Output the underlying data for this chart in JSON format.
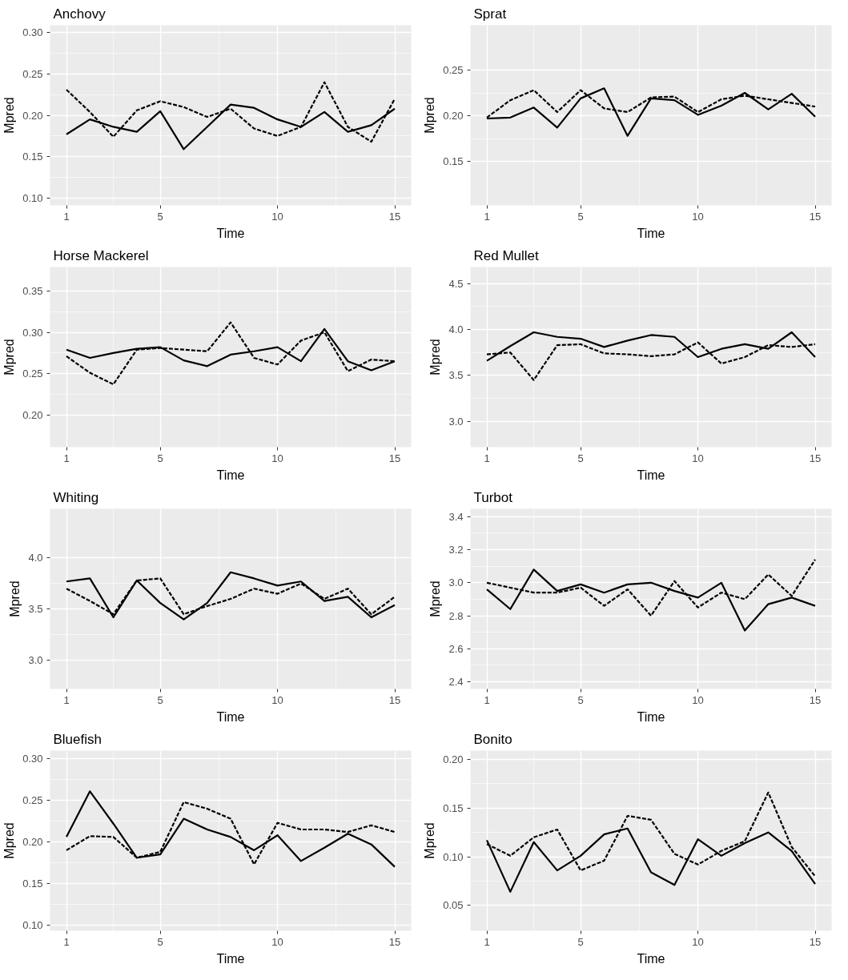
{
  "chart_data": [
    {
      "type": "line",
      "title": "Anchovy",
      "xlabel": "Time",
      "ylabel": "Mpred",
      "x": [
        1,
        2,
        3,
        4,
        5,
        6,
        7,
        8,
        9,
        10,
        11,
        12,
        13,
        14,
        15
      ],
      "xlim": [
        0.3,
        15.7
      ],
      "xticks": [
        1,
        5,
        10,
        15
      ],
      "ylim": [
        0.091,
        0.309
      ],
      "yticks": [
        {
          "value": 0.1,
          "label": "0.10"
        },
        {
          "value": 0.15,
          "label": "0.15"
        },
        {
          "value": 0.2,
          "label": "0.20"
        },
        {
          "value": 0.25,
          "label": "0.25"
        },
        {
          "value": 0.3,
          "label": "0.30"
        }
      ],
      "grid": true,
      "series": [
        {
          "color": "#000000",
          "line_style": "solid",
          "values": [
            0.177,
            0.195,
            0.186,
            0.18,
            0.205,
            0.159,
            0.186,
            0.213,
            0.209,
            0.195,
            0.186,
            0.204,
            0.18,
            0.188,
            0.208
          ]
        },
        {
          "color": "#000000",
          "line_style": "dashed",
          "values": [
            0.231,
            0.204,
            0.174,
            0.206,
            0.217,
            0.21,
            0.198,
            0.208,
            0.184,
            0.175,
            0.186,
            0.24,
            0.186,
            0.168,
            0.22
          ]
        }
      ]
    },
    {
      "type": "line",
      "title": "Sprat",
      "xlabel": "Time",
      "ylabel": "Mpred",
      "x": [
        1,
        2,
        3,
        4,
        5,
        6,
        7,
        8,
        9,
        10,
        11,
        12,
        13,
        14,
        15
      ],
      "xlim": [
        0.3,
        15.7
      ],
      "xticks": [
        1,
        5,
        10,
        15
      ],
      "ylim": [
        0.102,
        0.299
      ],
      "yticks": [
        {
          "value": 0.15,
          "label": "0.15"
        },
        {
          "value": 0.2,
          "label": "0.20"
        },
        {
          "value": 0.25,
          "label": "0.25"
        }
      ],
      "grid": true,
      "series": [
        {
          "color": "#000000",
          "line_style": "solid",
          "values": [
            0.197,
            0.198,
            0.209,
            0.187,
            0.219,
            0.23,
            0.178,
            0.219,
            0.217,
            0.201,
            0.211,
            0.225,
            0.207,
            0.224,
            0.199
          ]
        },
        {
          "color": "#000000",
          "line_style": "dashed",
          "values": [
            0.198,
            0.217,
            0.228,
            0.204,
            0.228,
            0.208,
            0.204,
            0.22,
            0.221,
            0.204,
            0.218,
            0.222,
            0.218,
            0.214,
            0.21
          ]
        }
      ]
    },
    {
      "type": "line",
      "title": "Horse Mackerel",
      "xlabel": "Time",
      "ylabel": "Mpred",
      "x": [
        1,
        2,
        3,
        4,
        5,
        6,
        7,
        8,
        9,
        10,
        11,
        12,
        13,
        14,
        15
      ],
      "xlim": [
        0.3,
        15.7
      ],
      "xticks": [
        1,
        5,
        10,
        15
      ],
      "ylim": [
        0.161,
        0.379
      ],
      "yticks": [
        {
          "value": 0.2,
          "label": "0.20"
        },
        {
          "value": 0.25,
          "label": "0.25"
        },
        {
          "value": 0.3,
          "label": "0.30"
        },
        {
          "value": 0.35,
          "label": "0.35"
        }
      ],
      "grid": true,
      "series": [
        {
          "color": "#000000",
          "line_style": "solid",
          "values": [
            0.279,
            0.269,
            0.275,
            0.28,
            0.282,
            0.266,
            0.259,
            0.273,
            0.277,
            0.282,
            0.265,
            0.304,
            0.265,
            0.254,
            0.265
          ]
        },
        {
          "color": "#000000",
          "line_style": "dashed",
          "values": [
            0.271,
            0.251,
            0.237,
            0.279,
            0.281,
            0.279,
            0.277,
            0.312,
            0.269,
            0.261,
            0.29,
            0.3,
            0.253,
            0.267,
            0.265
          ]
        }
      ]
    },
    {
      "type": "line",
      "title": "Red Mullet",
      "xlabel": "Time",
      "ylabel": "Mpred",
      "x": [
        1,
        2,
        3,
        4,
        5,
        6,
        7,
        8,
        9,
        10,
        11,
        12,
        13,
        14,
        15
      ],
      "xlim": [
        0.3,
        15.7
      ],
      "xticks": [
        1,
        5,
        10,
        15
      ],
      "ylim": [
        2.72,
        4.68
      ],
      "yticks": [
        {
          "value": 3.0,
          "label": "3.0"
        },
        {
          "value": 3.5,
          "label": "3.5"
        },
        {
          "value": 4.0,
          "label": "4.0"
        },
        {
          "value": 4.5,
          "label": "4.5"
        }
      ],
      "grid": true,
      "series": [
        {
          "color": "#000000",
          "line_style": "solid",
          "values": [
            3.66,
            3.82,
            3.97,
            3.92,
            3.9,
            3.81,
            3.88,
            3.94,
            3.92,
            3.7,
            3.79,
            3.84,
            3.79,
            3.97,
            3.7
          ]
        },
        {
          "color": "#000000",
          "line_style": "dashed",
          "values": [
            3.73,
            3.75,
            3.45,
            3.83,
            3.84,
            3.74,
            3.73,
            3.71,
            3.73,
            3.86,
            3.63,
            3.7,
            3.83,
            3.81,
            3.84
          ]
        }
      ]
    },
    {
      "type": "line",
      "title": "Whiting",
      "xlabel": "Time",
      "ylabel": "Mpred",
      "x": [
        1,
        2,
        3,
        4,
        5,
        6,
        7,
        8,
        9,
        10,
        11,
        12,
        13,
        14,
        15
      ],
      "xlim": [
        0.3,
        15.7
      ],
      "xticks": [
        1,
        5,
        10,
        15
      ],
      "ylim": [
        2.72,
        4.48
      ],
      "yticks": [
        {
          "value": 3.0,
          "label": "3.0"
        },
        {
          "value": 3.5,
          "label": "3.5"
        },
        {
          "value": 4.0,
          "label": "4.0"
        }
      ],
      "grid": true,
      "series": [
        {
          "color": "#000000",
          "line_style": "solid",
          "values": [
            3.77,
            3.8,
            3.42,
            3.78,
            3.56,
            3.4,
            3.56,
            3.86,
            3.8,
            3.73,
            3.77,
            3.58,
            3.62,
            3.42,
            3.54
          ]
        },
        {
          "color": "#000000",
          "line_style": "dashed",
          "values": [
            3.7,
            3.58,
            3.45,
            3.78,
            3.8,
            3.45,
            3.53,
            3.6,
            3.7,
            3.65,
            3.75,
            3.6,
            3.7,
            3.45,
            3.62
          ]
        }
      ]
    },
    {
      "type": "line",
      "title": "Turbot",
      "xlabel": "Time",
      "ylabel": "Mpred",
      "x": [
        1,
        2,
        3,
        4,
        5,
        6,
        7,
        8,
        9,
        10,
        11,
        12,
        13,
        14,
        15
      ],
      "xlim": [
        0.3,
        15.7
      ],
      "xticks": [
        1,
        5,
        10,
        15
      ],
      "ylim": [
        2.356,
        3.448
      ],
      "yticks": [
        {
          "value": 2.4,
          "label": "2.4"
        },
        {
          "value": 2.6,
          "label": "2.6"
        },
        {
          "value": 2.8,
          "label": "2.8"
        },
        {
          "value": 3.0,
          "label": "3.0"
        },
        {
          "value": 3.2,
          "label": "3.2"
        },
        {
          "value": 3.4,
          "label": "3.4"
        }
      ],
      "grid": true,
      "series": [
        {
          "color": "#000000",
          "line_style": "solid",
          "values": [
            2.96,
            2.84,
            3.08,
            2.95,
            2.99,
            2.94,
            2.99,
            3.0,
            2.95,
            2.91,
            3.0,
            2.71,
            2.87,
            2.91,
            2.86
          ]
        },
        {
          "color": "#000000",
          "line_style": "dashed",
          "values": [
            3.0,
            2.97,
            2.94,
            2.94,
            2.97,
            2.86,
            2.96,
            2.8,
            3.01,
            2.85,
            2.94,
            2.9,
            3.05,
            2.92,
            3.14
          ]
        }
      ]
    },
    {
      "type": "line",
      "title": "Bluefish",
      "xlabel": "Time",
      "ylabel": "Mpred",
      "x": [
        1,
        2,
        3,
        4,
        5,
        6,
        7,
        8,
        9,
        10,
        11,
        12,
        13,
        14,
        15
      ],
      "xlim": [
        0.3,
        15.7
      ],
      "xticks": [
        1,
        5,
        10,
        15
      ],
      "ylim": [
        0.093,
        0.31
      ],
      "yticks": [
        {
          "value": 0.1,
          "label": "0.10"
        },
        {
          "value": 0.15,
          "label": "0.15"
        },
        {
          "value": 0.2,
          "label": "0.20"
        },
        {
          "value": 0.25,
          "label": "0.25"
        },
        {
          "value": 0.3,
          "label": "0.30"
        }
      ],
      "grid": true,
      "series": [
        {
          "color": "#000000",
          "line_style": "solid",
          "values": [
            0.206,
            0.261,
            0.222,
            0.181,
            0.185,
            0.228,
            0.215,
            0.206,
            0.19,
            0.208,
            0.177,
            0.193,
            0.21,
            0.197,
            0.17
          ]
        },
        {
          "color": "#000000",
          "line_style": "dashed",
          "values": [
            0.19,
            0.207,
            0.206,
            0.181,
            0.188,
            0.248,
            0.24,
            0.228,
            0.173,
            0.223,
            0.215,
            0.215,
            0.212,
            0.22,
            0.212
          ]
        }
      ]
    },
    {
      "type": "line",
      "title": "Bonito",
      "xlabel": "Time",
      "ylabel": "Mpred",
      "x": [
        1,
        2,
        3,
        4,
        5,
        6,
        7,
        8,
        9,
        10,
        11,
        12,
        13,
        14,
        15
      ],
      "xlim": [
        0.3,
        15.7
      ],
      "xticks": [
        1,
        5,
        10,
        15
      ],
      "ylim": [
        0.024,
        0.209
      ],
      "yticks": [
        {
          "value": 0.05,
          "label": "0.05"
        },
        {
          "value": 0.1,
          "label": "0.10"
        },
        {
          "value": 0.15,
          "label": "0.15"
        },
        {
          "value": 0.2,
          "label": "0.20"
        }
      ],
      "grid": true,
      "series": [
        {
          "color": "#000000",
          "line_style": "solid",
          "values": [
            0.117,
            0.064,
            0.115,
            0.086,
            0.101,
            0.123,
            0.129,
            0.084,
            0.071,
            0.118,
            0.101,
            0.114,
            0.125,
            0.106,
            0.072
          ]
        },
        {
          "color": "#000000",
          "line_style": "dashed",
          "values": [
            0.113,
            0.101,
            0.12,
            0.128,
            0.086,
            0.096,
            0.142,
            0.138,
            0.103,
            0.092,
            0.106,
            0.116,
            0.166,
            0.11,
            0.08
          ]
        }
      ]
    }
  ]
}
